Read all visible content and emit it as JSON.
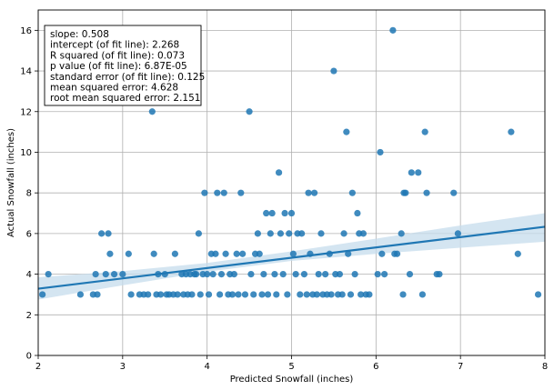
{
  "chart_data": {
    "type": "scatter",
    "xlabel": "Predicted Snowfall (inches)",
    "ylabel": "Actual Snowfall (inches)",
    "xlim": [
      2,
      8
    ],
    "ylim": [
      0,
      17
    ],
    "xticks": [
      2,
      3,
      4,
      5,
      6,
      7,
      8
    ],
    "yticks": [
      0,
      2,
      4,
      6,
      8,
      10,
      12,
      14,
      16
    ],
    "grid": true,
    "colors": {
      "points": "#1f77b4",
      "fit_line": "#1f77b4",
      "confidence_band": "#c6dcec"
    },
    "fit_line": {
      "slope": 0.508,
      "intercept": 2.268
    },
    "confidence_band": {
      "x": [
        2.0,
        3.0,
        4.0,
        5.0,
        6.0,
        7.0,
        8.0
      ],
      "lower": [
        2.75,
        3.45,
        4.12,
        4.65,
        5.0,
        5.3,
        5.6
      ],
      "upper": [
        3.85,
        4.15,
        4.55,
        5.12,
        5.75,
        6.4,
        7.0
      ]
    },
    "stats": [
      "slope: 0.508",
      "intercept (of fit line): 2.268",
      "R squared (of fit line): 0.073",
      "p value (of fit line):    6.87E-05",
      "standard error (of fit line): 0.125",
      "mean squared error: 4.628",
      "root mean squared error: 2.151"
    ],
    "points": [
      [
        2.05,
        3
      ],
      [
        2.12,
        4
      ],
      [
        2.5,
        3
      ],
      [
        2.65,
        3
      ],
      [
        2.68,
        4
      ],
      [
        2.7,
        3
      ],
      [
        2.75,
        6
      ],
      [
        2.8,
        4
      ],
      [
        2.83,
        6
      ],
      [
        2.85,
        5
      ],
      [
        2.9,
        4
      ],
      [
        3.0,
        4
      ],
      [
        3.07,
        5
      ],
      [
        3.1,
        3
      ],
      [
        3.2,
        3
      ],
      [
        3.25,
        3
      ],
      [
        3.3,
        3
      ],
      [
        3.35,
        12
      ],
      [
        3.37,
        5
      ],
      [
        3.4,
        3
      ],
      [
        3.42,
        4
      ],
      [
        3.45,
        3
      ],
      [
        3.5,
        4
      ],
      [
        3.52,
        3
      ],
      [
        3.55,
        3
      ],
      [
        3.6,
        3
      ],
      [
        3.62,
        5
      ],
      [
        3.65,
        3
      ],
      [
        3.7,
        4
      ],
      [
        3.72,
        3
      ],
      [
        3.75,
        4
      ],
      [
        3.77,
        3
      ],
      [
        3.8,
        4
      ],
      [
        3.82,
        3
      ],
      [
        3.85,
        4
      ],
      [
        3.87,
        4
      ],
      [
        3.9,
        6
      ],
      [
        3.92,
        3
      ],
      [
        3.95,
        4
      ],
      [
        3.97,
        8
      ],
      [
        4.0,
        4
      ],
      [
        4.02,
        3
      ],
      [
        4.05,
        5
      ],
      [
        4.07,
        4
      ],
      [
        4.1,
        5
      ],
      [
        4.12,
        8
      ],
      [
        4.15,
        3
      ],
      [
        4.17,
        4
      ],
      [
        4.2,
        8
      ],
      [
        4.22,
        5
      ],
      [
        4.25,
        3
      ],
      [
        4.27,
        4
      ],
      [
        4.3,
        3
      ],
      [
        4.32,
        4
      ],
      [
        4.35,
        5
      ],
      [
        4.37,
        3
      ],
      [
        4.4,
        8
      ],
      [
        4.42,
        5
      ],
      [
        4.45,
        3
      ],
      [
        4.5,
        12
      ],
      [
        4.52,
        4
      ],
      [
        4.55,
        3
      ],
      [
        4.57,
        5
      ],
      [
        4.6,
        6
      ],
      [
        4.62,
        5
      ],
      [
        4.65,
        3
      ],
      [
        4.67,
        4
      ],
      [
        4.7,
        7
      ],
      [
        4.72,
        3
      ],
      [
        4.75,
        6
      ],
      [
        4.77,
        7
      ],
      [
        4.8,
        4
      ],
      [
        4.82,
        3
      ],
      [
        4.85,
        9
      ],
      [
        4.87,
        6
      ],
      [
        4.9,
        4
      ],
      [
        4.92,
        7
      ],
      [
        4.95,
        3
      ],
      [
        4.97,
        6
      ],
      [
        5.0,
        7
      ],
      [
        5.02,
        5
      ],
      [
        5.05,
        4
      ],
      [
        5.07,
        6
      ],
      [
        5.1,
        3
      ],
      [
        5.12,
        6
      ],
      [
        5.15,
        4
      ],
      [
        5.18,
        3
      ],
      [
        5.2,
        8
      ],
      [
        5.22,
        5
      ],
      [
        5.25,
        3
      ],
      [
        5.27,
        8
      ],
      [
        5.3,
        3
      ],
      [
        5.32,
        4
      ],
      [
        5.35,
        6
      ],
      [
        5.37,
        3
      ],
      [
        5.4,
        4
      ],
      [
        5.42,
        3
      ],
      [
        5.45,
        5
      ],
      [
        5.47,
        3
      ],
      [
        5.5,
        14
      ],
      [
        5.52,
        4
      ],
      [
        5.55,
        3
      ],
      [
        5.57,
        4
      ],
      [
        5.6,
        3
      ],
      [
        5.62,
        6
      ],
      [
        5.65,
        11
      ],
      [
        5.67,
        5
      ],
      [
        5.7,
        3
      ],
      [
        5.72,
        8
      ],
      [
        5.75,
        4
      ],
      [
        5.78,
        7
      ],
      [
        5.8,
        6
      ],
      [
        5.82,
        3
      ],
      [
        5.85,
        6
      ],
      [
        5.88,
        3
      ],
      [
        5.92,
        3
      ],
      [
        6.02,
        4
      ],
      [
        6.05,
        10
      ],
      [
        6.07,
        5
      ],
      [
        6.1,
        4
      ],
      [
        6.2,
        16
      ],
      [
        6.22,
        5
      ],
      [
        6.25,
        5
      ],
      [
        6.3,
        6
      ],
      [
        6.32,
        3
      ],
      [
        6.33,
        8
      ],
      [
        6.35,
        8
      ],
      [
        6.4,
        4
      ],
      [
        6.42,
        9
      ],
      [
        6.5,
        9
      ],
      [
        6.55,
        3
      ],
      [
        6.58,
        11
      ],
      [
        6.6,
        8
      ],
      [
        6.72,
        4
      ],
      [
        6.75,
        4
      ],
      [
        6.92,
        8
      ],
      [
        6.97,
        6
      ],
      [
        7.6,
        11
      ],
      [
        7.68,
        5
      ],
      [
        7.92,
        3
      ]
    ]
  }
}
